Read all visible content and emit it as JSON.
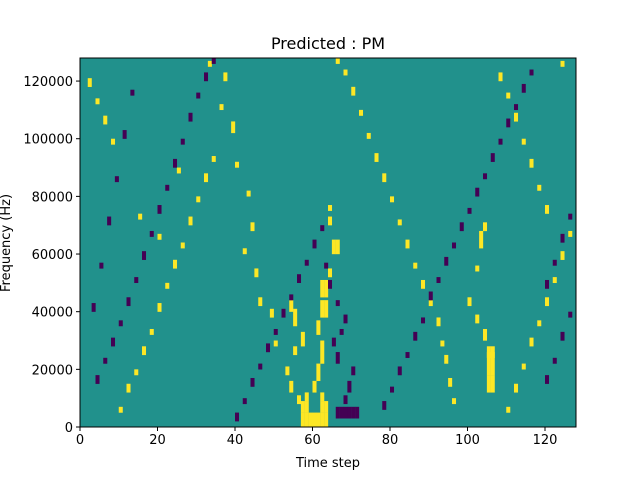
{
  "chart_data": {
    "type": "heatmap",
    "title": "Predicted : PM",
    "xlabel": "Time step",
    "ylabel": "Frequency (Hz)",
    "xlim": [
      0,
      128
    ],
    "ylim": [
      0,
      128000
    ],
    "xticks": [
      0,
      20,
      40,
      60,
      80,
      100,
      120
    ],
    "yticks": [
      0,
      20000,
      40000,
      60000,
      80000,
      100000,
      120000
    ],
    "grid": false,
    "grid_shape": {
      "columns": 128,
      "rows": 128,
      "cell_height_hz": 1000
    },
    "colors": {
      "background": "#21918c",
      "high": "#fde725",
      "low": "#440154"
    },
    "cells_high": [
      [
        57,
        0,
        5
      ],
      [
        58,
        0,
        5
      ],
      [
        59,
        0,
        5
      ],
      [
        60,
        0,
        5
      ],
      [
        61,
        0,
        5
      ],
      [
        62,
        0,
        5
      ],
      [
        63,
        0,
        5
      ],
      [
        57,
        5,
        4
      ],
      [
        58,
        5,
        4
      ],
      [
        62,
        5,
        4
      ],
      [
        63,
        5,
        4
      ],
      [
        58,
        9,
        3
      ],
      [
        62,
        9,
        3
      ],
      [
        60,
        12,
        4
      ],
      [
        61,
        16,
        6
      ],
      [
        62,
        22,
        8
      ],
      [
        61,
        32,
        5
      ],
      [
        62,
        38,
        6
      ],
      [
        63,
        38,
        6
      ],
      [
        62,
        45,
        6
      ],
      [
        63,
        45,
        6
      ],
      [
        64,
        52,
        3
      ],
      [
        65,
        60,
        5
      ],
      [
        66,
        60,
        5
      ],
      [
        64,
        70,
        3
      ],
      [
        64,
        75,
        2
      ],
      [
        56,
        8,
        3
      ],
      [
        54,
        12,
        4
      ],
      [
        53,
        18,
        3
      ],
      [
        55,
        25,
        3
      ],
      [
        57,
        28,
        5
      ],
      [
        55,
        35,
        6
      ],
      [
        54,
        40,
        4
      ],
      [
        50,
        28,
        2
      ],
      [
        49,
        38,
        3
      ],
      [
        46,
        42,
        3
      ],
      [
        45,
        52,
        3
      ],
      [
        42,
        60,
        2
      ],
      [
        44,
        68,
        3
      ],
      [
        43,
        80,
        2
      ],
      [
        40,
        90,
        2
      ],
      [
        39,
        102,
        4
      ],
      [
        36,
        110,
        2
      ],
      [
        37,
        120,
        3
      ],
      [
        33,
        125,
        2
      ],
      [
        105,
        12,
        6
      ],
      [
        106,
        12,
        6
      ],
      [
        105,
        18,
        8
      ],
      [
        106,
        18,
        8
      ],
      [
        105,
        24,
        4
      ],
      [
        106,
        24,
        4
      ],
      [
        104,
        30,
        4
      ],
      [
        102,
        36,
        3
      ],
      [
        100,
        42,
        3
      ],
      [
        102,
        54,
        2
      ],
      [
        103,
        62,
        6
      ],
      [
        104,
        68,
        3
      ],
      [
        96,
        8,
        2
      ],
      [
        95,
        14,
        3
      ],
      [
        94,
        22,
        3
      ],
      [
        93,
        28,
        2
      ],
      [
        92,
        35,
        3
      ],
      [
        90,
        42,
        2
      ],
      [
        88,
        48,
        3
      ],
      [
        86,
        55,
        2
      ],
      [
        84,
        62,
        3
      ],
      [
        82,
        70,
        2
      ],
      [
        80,
        78,
        2
      ],
      [
        78,
        85,
        3
      ],
      [
        76,
        92,
        3
      ],
      [
        74,
        100,
        2
      ],
      [
        72,
        108,
        2
      ],
      [
        70,
        115,
        3
      ],
      [
        68,
        122,
        2
      ],
      [
        66,
        126,
        2
      ],
      [
        10,
        5,
        2
      ],
      [
        12,
        12,
        3
      ],
      [
        14,
        18,
        2
      ],
      [
        16,
        25,
        3
      ],
      [
        18,
        32,
        2
      ],
      [
        20,
        40,
        3
      ],
      [
        22,
        48,
        2
      ],
      [
        24,
        55,
        3
      ],
      [
        26,
        62,
        2
      ],
      [
        28,
        70,
        3
      ],
      [
        30,
        78,
        2
      ],
      [
        32,
        85,
        3
      ],
      [
        34,
        92,
        2
      ],
      [
        8,
        98,
        2
      ],
      [
        6,
        105,
        3
      ],
      [
        4,
        112,
        2
      ],
      [
        2,
        118,
        3
      ],
      [
        20,
        65,
        2
      ],
      [
        15,
        72,
        2
      ],
      [
        25,
        88,
        2
      ],
      [
        110,
        5,
        2
      ],
      [
        112,
        12,
        3
      ],
      [
        114,
        20,
        2
      ],
      [
        116,
        28,
        3
      ],
      [
        118,
        35,
        2
      ],
      [
        120,
        42,
        3
      ],
      [
        122,
        50,
        2
      ],
      [
        124,
        58,
        3
      ],
      [
        126,
        66,
        2
      ],
      [
        120,
        74,
        3
      ],
      [
        118,
        82,
        2
      ],
      [
        116,
        90,
        3
      ],
      [
        114,
        98,
        2
      ],
      [
        112,
        106,
        3
      ],
      [
        110,
        114,
        2
      ],
      [
        108,
        120,
        3
      ],
      [
        124,
        125,
        2
      ]
    ],
    "cells_low": [
      [
        66,
        3,
        4
      ],
      [
        67,
        3,
        4
      ],
      [
        68,
        3,
        4
      ],
      [
        69,
        3,
        4
      ],
      [
        70,
        3,
        4
      ],
      [
        71,
        3,
        4
      ],
      [
        68,
        8,
        3
      ],
      [
        69,
        12,
        4
      ],
      [
        70,
        18,
        3
      ],
      [
        66,
        22,
        4
      ],
      [
        65,
        28,
        3
      ],
      [
        67,
        32,
        2
      ],
      [
        68,
        36,
        3
      ],
      [
        66,
        42,
        2
      ],
      [
        64,
        48,
        3
      ],
      [
        63,
        55,
        2
      ],
      [
        78,
        6,
        3
      ],
      [
        80,
        12,
        2
      ],
      [
        82,
        18,
        3
      ],
      [
        84,
        24,
        2
      ],
      [
        86,
        30,
        3
      ],
      [
        88,
        36,
        2
      ],
      [
        90,
        44,
        3
      ],
      [
        92,
        50,
        2
      ],
      [
        94,
        56,
        3
      ],
      [
        96,
        62,
        2
      ],
      [
        98,
        68,
        3
      ],
      [
        100,
        74,
        2
      ],
      [
        102,
        80,
        3
      ],
      [
        104,
        86,
        2
      ],
      [
        106,
        92,
        3
      ],
      [
        108,
        98,
        2
      ],
      [
        110,
        104,
        3
      ],
      [
        112,
        110,
        2
      ],
      [
        114,
        116,
        3
      ],
      [
        116,
        122,
        2
      ],
      [
        4,
        15,
        3
      ],
      [
        6,
        22,
        2
      ],
      [
        8,
        28,
        3
      ],
      [
        10,
        35,
        2
      ],
      [
        12,
        42,
        3
      ],
      [
        14,
        50,
        2
      ],
      [
        16,
        58,
        3
      ],
      [
        18,
        66,
        2
      ],
      [
        20,
        74,
        3
      ],
      [
        22,
        82,
        2
      ],
      [
        24,
        90,
        3
      ],
      [
        26,
        98,
        2
      ],
      [
        28,
        106,
        3
      ],
      [
        30,
        114,
        2
      ],
      [
        32,
        120,
        3
      ],
      [
        34,
        126,
        2
      ],
      [
        40,
        2,
        3
      ],
      [
        42,
        8,
        2
      ],
      [
        44,
        14,
        3
      ],
      [
        46,
        20,
        2
      ],
      [
        48,
        26,
        3
      ],
      [
        50,
        32,
        2
      ],
      [
        52,
        38,
        3
      ],
      [
        54,
        44,
        2
      ],
      [
        56,
        50,
        3
      ],
      [
        58,
        56,
        2
      ],
      [
        60,
        62,
        3
      ],
      [
        62,
        68,
        2
      ],
      [
        120,
        15,
        3
      ],
      [
        122,
        22,
        2
      ],
      [
        124,
        30,
        3
      ],
      [
        126,
        38,
        2
      ],
      [
        120,
        48,
        3
      ],
      [
        122,
        56,
        2
      ],
      [
        124,
        64,
        3
      ],
      [
        126,
        72,
        2
      ],
      [
        3,
        40,
        3
      ],
      [
        5,
        55,
        2
      ],
      [
        7,
        70,
        3
      ],
      [
        9,
        85,
        2
      ],
      [
        11,
        100,
        3
      ],
      [
        13,
        115,
        2
      ]
    ]
  }
}
